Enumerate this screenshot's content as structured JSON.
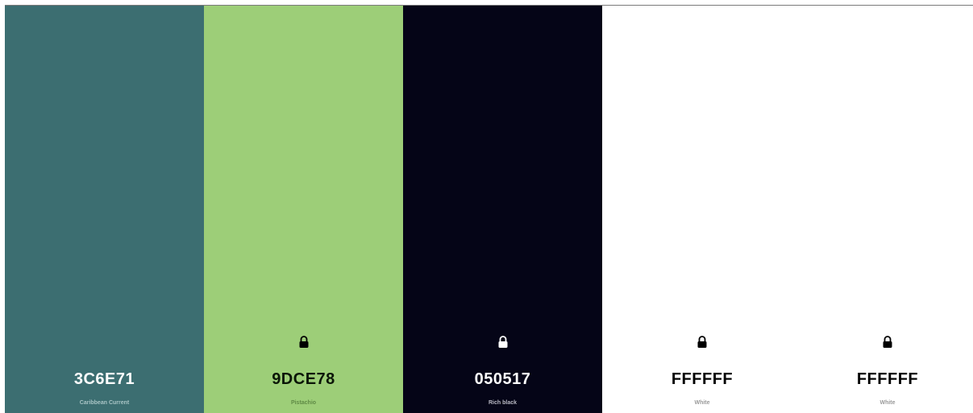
{
  "palette": {
    "colors": [
      {
        "hex": "3C6E71",
        "name": "Caribbean Current",
        "bg": "#3c6e71",
        "text_color": "#ffffff",
        "name_color": "#a8c4c5",
        "locked": false
      },
      {
        "hex": "9DCE78",
        "name": "Pistachio",
        "bg": "#9dce78",
        "text_color": "#0b1608",
        "name_color": "#5f8a45",
        "locked": true,
        "lock_color": "#000000"
      },
      {
        "hex": "050517",
        "name": "Rich black",
        "bg": "#050517",
        "text_color": "#ffffff",
        "name_color": "#b9b9c4",
        "locked": true,
        "lock_color": "#ffffff"
      },
      {
        "hex": "FFFFFF",
        "name": "White",
        "bg": "#ffffff",
        "text_color": "#000000",
        "name_color": "#9a9a9a",
        "locked": true,
        "lock_color": "#000000"
      },
      {
        "hex": "FFFFFF",
        "name": "White",
        "bg": "#ffffff",
        "text_color": "#000000",
        "name_color": "#9a9a9a",
        "locked": true,
        "lock_color": "#000000"
      }
    ]
  },
  "icons": {
    "lock": "lock-icon"
  }
}
